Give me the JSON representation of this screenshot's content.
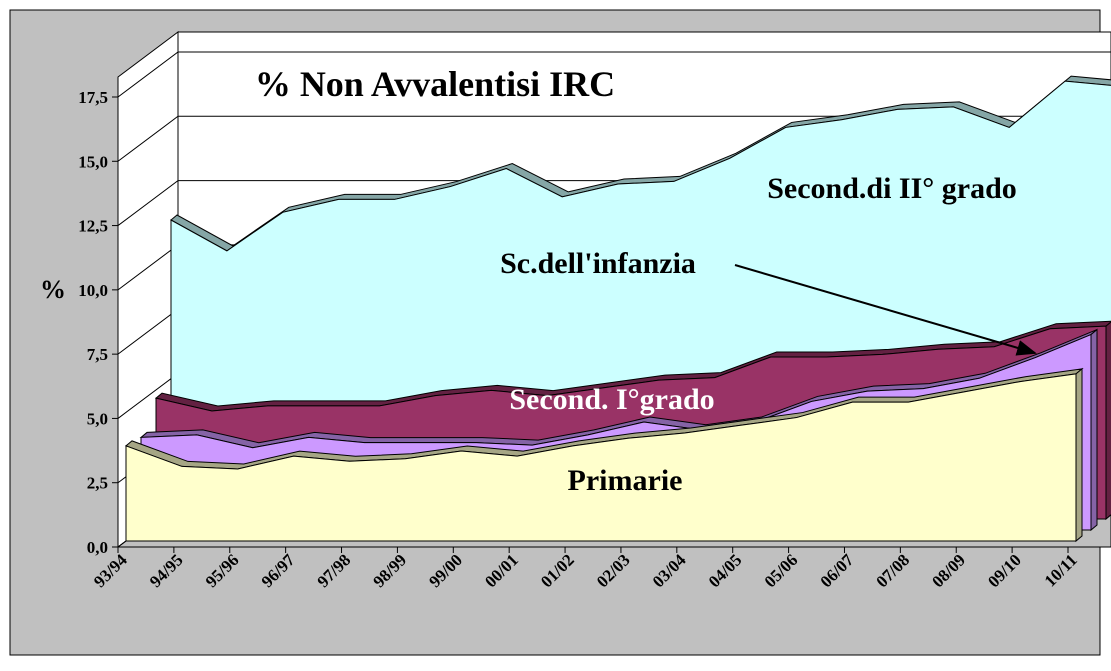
{
  "chart_data": {
    "type": "area3d",
    "title": "% Non Avvalentisi IRC",
    "y_label": "%",
    "categories": [
      "93/94",
      "94/95",
      "95/96",
      "96/97",
      "97/98",
      "98/99",
      "99/00",
      "00/01",
      "01/02",
      "02/03",
      "03/04",
      "04/05",
      "05/06",
      "06/07",
      "07/08",
      "08/09",
      "09/10",
      "10/11"
    ],
    "series": [
      {
        "name": "Primarie",
        "color": "#ffffcc",
        "values": [
          3.7,
          2.9,
          2.8,
          3.3,
          3.1,
          3.2,
          3.5,
          3.3,
          3.7,
          4.0,
          4.2,
          4.5,
          4.8,
          5.4,
          5.4,
          5.8,
          6.2,
          6.5
        ]
      },
      {
        "name": "Sc.dell'infanzia",
        "color": "#cc99ff",
        "values": [
          3.6,
          3.7,
          3.2,
          3.6,
          3.4,
          3.4,
          3.4,
          3.3,
          3.7,
          4.2,
          3.9,
          4.2,
          5.0,
          5.4,
          5.5,
          5.9,
          6.7,
          7.6
        ]
      },
      {
        "name": "Second. I°grado",
        "color": "#993366",
        "values": [
          4.7,
          4.2,
          4.4,
          4.4,
          4.4,
          4.8,
          5.0,
          4.8,
          5.1,
          5.4,
          5.5,
          6.3,
          6.3,
          6.4,
          6.6,
          6.7,
          7.4,
          7.5
        ]
      },
      {
        "name": "Second.di II° grado",
        "color": "#ccffff",
        "values": [
          11.2,
          10.0,
          11.5,
          12.0,
          12.0,
          12.5,
          13.2,
          12.1,
          12.6,
          12.7,
          13.6,
          14.8,
          15.1,
          15.5,
          15.6,
          14.8,
          16.6,
          16.4
        ]
      }
    ],
    "ylim": [
      0,
      17.5
    ],
    "yticks": [
      {
        "value": 0,
        "label": "0,0"
      },
      {
        "value": 2.5,
        "label": "2,5"
      },
      {
        "value": 5,
        "label": "5,0"
      },
      {
        "value": 7.5,
        "label": "7,5"
      },
      {
        "value": 10,
        "label": "10,0"
      },
      {
        "value": 12.5,
        "label": "12,5"
      },
      {
        "value": 15,
        "label": "15,0"
      },
      {
        "value": 17.5,
        "label": "17,5"
      }
    ],
    "grid": true
  }
}
